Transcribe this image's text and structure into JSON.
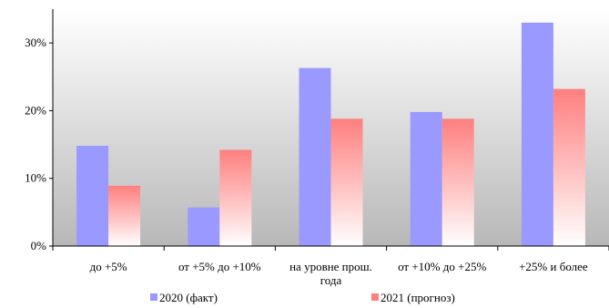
{
  "chart_data": {
    "type": "bar",
    "categories": [
      [
        "до +5%"
      ],
      [
        "от +5% до +10%"
      ],
      [
        "на уровне прош.",
        "года"
      ],
      [
        "от +10% до +25%"
      ],
      [
        "+25% и более"
      ]
    ],
    "series": [
      {
        "name": "2020 (факт)",
        "values": [
          14.8,
          5.7,
          26.3,
          19.8,
          33.0
        ],
        "color": "#9999ff"
      },
      {
        "name": "2021 (прогноз)",
        "values": [
          8.9,
          14.2,
          18.8,
          18.8,
          23.2
        ],
        "color": "#ff7f7f"
      }
    ],
    "ylim": [
      0,
      35
    ],
    "yticks": [
      0,
      10,
      20,
      30
    ],
    "ytick_labels": [
      "0%",
      "10%",
      "20%",
      "30%"
    ],
    "plot_background": "gray-to-white gradient",
    "grid": false,
    "legend_position": "bottom",
    "title": "",
    "xlabel": "",
    "ylabel": ""
  }
}
